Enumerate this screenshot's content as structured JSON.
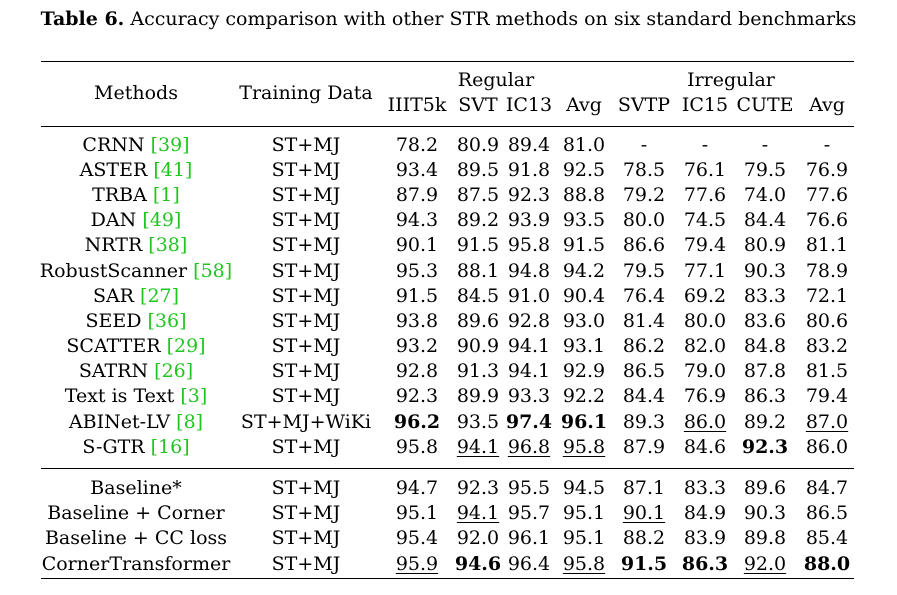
{
  "caption": {
    "label": "Table 6.",
    "text": " Accuracy comparison with other STR methods on six standard benchmarks"
  },
  "header": {
    "methods": "Methods",
    "training": "Training Data",
    "regular": "Regular",
    "irregular": "Irregular",
    "columns": [
      "IIIT5k",
      "SVT",
      "IC13",
      "Avg",
      "SVTP",
      "IC15",
      "CUTE",
      "Avg"
    ]
  },
  "rows": [
    {
      "name": "CRNN",
      "ref": "39",
      "data": "ST+MJ",
      "values": [
        "78.2",
        "80.9",
        "89.4",
        "81.0",
        "-",
        "-",
        "-",
        "-"
      ]
    },
    {
      "name": "ASTER",
      "ref": "41",
      "data": "ST+MJ",
      "values": [
        "93.4",
        "89.5",
        "91.8",
        "92.5",
        "78.5",
        "76.1",
        "79.5",
        "76.9"
      ]
    },
    {
      "name": "TRBA",
      "ref": "1",
      "data": "ST+MJ",
      "values": [
        "87.9",
        "87.5",
        "92.3",
        "88.8",
        "79.2",
        "77.6",
        "74.0",
        "77.6"
      ]
    },
    {
      "name": "DAN",
      "ref": "49",
      "data": "ST+MJ",
      "values": [
        "94.3",
        "89.2",
        "93.9",
        "93.5",
        "80.0",
        "74.5",
        "84.4",
        "76.6"
      ]
    },
    {
      "name": "NRTR",
      "ref": "38",
      "data": "ST+MJ",
      "values": [
        "90.1",
        "91.5",
        "95.8",
        "91.5",
        "86.6",
        "79.4",
        "80.9",
        "81.1"
      ]
    },
    {
      "name": "RobustScanner",
      "ref": "58",
      "data": "ST+MJ",
      "values": [
        "95.3",
        "88.1",
        "94.8",
        "94.2",
        "79.5",
        "77.1",
        "90.3",
        "78.9"
      ]
    },
    {
      "name": "SAR",
      "ref": "27",
      "data": "ST+MJ",
      "values": [
        "91.5",
        "84.5",
        "91.0",
        "90.4",
        "76.4",
        "69.2",
        "83.3",
        "72.1"
      ]
    },
    {
      "name": "SEED",
      "ref": "36",
      "data": "ST+MJ",
      "values": [
        "93.8",
        "89.6",
        "92.8",
        "93.0",
        "81.4",
        "80.0",
        "83.6",
        "80.6"
      ]
    },
    {
      "name": "SCATTER",
      "ref": "29",
      "data": "ST+MJ",
      "values": [
        "93.2",
        "90.9",
        "94.1",
        "93.1",
        "86.2",
        "82.0",
        "84.8",
        "83.2"
      ]
    },
    {
      "name": "SATRN",
      "ref": "26",
      "data": "ST+MJ",
      "values": [
        "92.8",
        "91.3",
        "94.1",
        "92.9",
        "86.5",
        "79.0",
        "87.8",
        "81.5"
      ]
    },
    {
      "name": "Text is Text",
      "ref": "3",
      "data": "ST+MJ",
      "values": [
        "92.3",
        "89.9",
        "93.3",
        "92.2",
        "84.4",
        "76.9",
        "86.3",
        "79.4"
      ]
    },
    {
      "name": "ABINet-LV",
      "ref": "8",
      "data": "ST+MJ+WiKi",
      "values": [
        "96.2",
        "93.5",
        "97.4",
        "96.1",
        "89.3",
        "86.0",
        "89.2",
        "87.0"
      ],
      "bold": [
        0,
        2,
        3
      ],
      "underline": [
        5,
        7
      ]
    },
    {
      "name": "S-GTR",
      "ref": "16",
      "data": "ST+MJ",
      "values": [
        "95.8",
        "94.1",
        "96.8",
        "95.8",
        "87.9",
        "84.6",
        "92.3",
        "86.0"
      ],
      "bold": [
        6
      ],
      "underline": [
        1,
        2,
        3
      ]
    },
    {
      "name": "Baseline*",
      "ref": "",
      "data": "ST+MJ",
      "values": [
        "94.7",
        "92.3",
        "95.5",
        "94.5",
        "87.1",
        "83.3",
        "89.6",
        "84.7"
      ]
    },
    {
      "name": "Baseline + Corner",
      "ref": "",
      "data": "ST+MJ",
      "values": [
        "95.1",
        "94.1",
        "95.7",
        "95.1",
        "90.1",
        "84.9",
        "90.3",
        "86.5"
      ],
      "underline": [
        1,
        4
      ]
    },
    {
      "name": "Baseline + CC loss",
      "ref": "",
      "data": "ST+MJ",
      "values": [
        "95.4",
        "92.0",
        "96.1",
        "95.1",
        "88.2",
        "83.9",
        "89.8",
        "85.4"
      ]
    },
    {
      "name": "CornerTransformer",
      "ref": "",
      "data": "ST+MJ",
      "values": [
        "95.9",
        "94.6",
        "96.4",
        "95.8",
        "91.5",
        "86.3",
        "92.0",
        "88.0"
      ],
      "bold": [
        1,
        4,
        5,
        7
      ],
      "underline": [
        0,
        3,
        6
      ]
    }
  ]
}
